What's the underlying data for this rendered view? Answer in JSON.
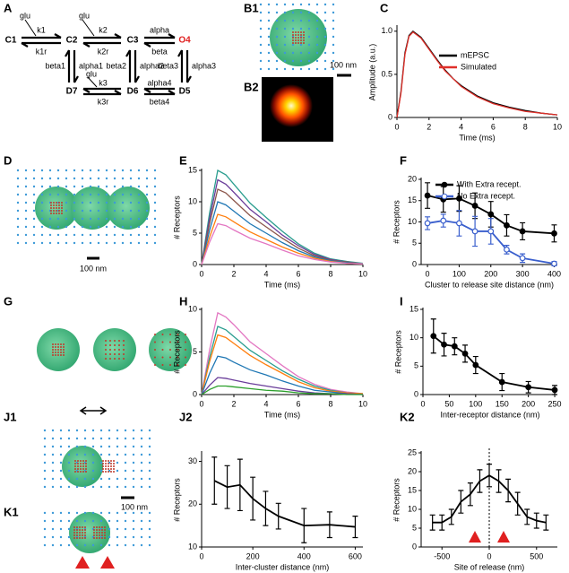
{
  "panel_labels": [
    "A",
    "B1",
    "B2",
    "C",
    "D",
    "E",
    "F",
    "G",
    "H",
    "I",
    "J1",
    "J2",
    "K1",
    "K2"
  ],
  "scheme": {
    "states": [
      "C1",
      "C2",
      "C3",
      "O4",
      "D7",
      "D6",
      "D5"
    ],
    "labels": [
      "glu",
      "k1",
      "k1r",
      "glu",
      "k2",
      "k2r",
      "alpha",
      "beta",
      "beta1",
      "alpha1",
      "beta2",
      "alpha2",
      "beta3",
      "alpha3",
      "glu",
      "k3",
      "k3r",
      "alpha4",
      "beta4"
    ]
  },
  "scale_bars": [
    "100 nm",
    "100 nm",
    "100 nm"
  ],
  "chart_data": [
    {
      "type": "line",
      "xlabel": "Time (ms)",
      "ylabel": "Amplitude (a.u.)",
      "legend": "upper right",
      "x": [
        0,
        0.25,
        0.5,
        0.75,
        1,
        1.5,
        2,
        2.5,
        3,
        3.5,
        4,
        5,
        6,
        7,
        8,
        9,
        10
      ],
      "series": [
        {
          "name": "mEPSC",
          "color": "#000000",
          "values": [
            0,
            0.3,
            0.75,
            0.95,
            1.0,
            0.93,
            0.8,
            0.67,
            0.55,
            0.45,
            0.37,
            0.25,
            0.17,
            0.12,
            0.08,
            0.05,
            0.03
          ]
        },
        {
          "name": "Simulated",
          "color": "#e0302a",
          "values": [
            0,
            0.28,
            0.73,
            0.94,
            0.99,
            0.92,
            0.79,
            0.66,
            0.54,
            0.45,
            0.36,
            0.24,
            0.16,
            0.11,
            0.07,
            0.05,
            0.03
          ]
        }
      ],
      "xlim": [
        0,
        10
      ],
      "xticks": [
        0,
        2,
        4,
        6,
        8,
        10
      ],
      "ylim": [
        0,
        1.05
      ],
      "yticks": [
        0,
        0.5,
        {
          "value": 1,
          "label": "1.0"
        }
      ]
    },
    {
      "type": "line",
      "xlabel": "Time (ms)",
      "ylabel": "# Receptors",
      "x": [
        0,
        0.5,
        1,
        1.5,
        2,
        3,
        4,
        5,
        6,
        7,
        8,
        9,
        10
      ],
      "series": [
        {
          "color": "#2a9d8f",
          "values": [
            0,
            8.3,
            15,
            14.3,
            12.8,
            9.8,
            7.5,
            5.3,
            3.3,
            1.8,
            0.9,
            0.5,
            0.2
          ]
        },
        {
          "color": "#6a3d9a",
          "values": [
            0,
            7.4,
            13.5,
            12.8,
            11.5,
            8.8,
            6.8,
            4.7,
            3,
            1.6,
            0.8,
            0.4,
            0.1
          ]
        },
        {
          "color": "#8c564b",
          "values": [
            0,
            6.6,
            12,
            11.4,
            10.2,
            7.8,
            6,
            4.2,
            2.6,
            1.4,
            0.7,
            0.4,
            0.1
          ]
        },
        {
          "color": "#1f77b4",
          "values": [
            0,
            5.5,
            10,
            9.5,
            8.5,
            6.5,
            5,
            3.5,
            2.2,
            1.2,
            0.6,
            0.3,
            0.1
          ]
        },
        {
          "color": "#ff7f0e",
          "values": [
            0,
            4.4,
            8,
            7.6,
            6.8,
            5.2,
            4,
            2.8,
            1.8,
            1,
            0.5,
            0.2,
            0.1
          ]
        },
        {
          "color": "#e377c2",
          "values": [
            0,
            3.6,
            6.5,
            6.2,
            5.5,
            4.2,
            3.3,
            2.3,
            1.4,
            0.8,
            0.4,
            0.2,
            0.1
          ]
        }
      ],
      "xlim": [
        0,
        10
      ],
      "xticks": [
        0,
        2,
        4,
        6,
        8,
        10
      ],
      "ylim": [
        0,
        15
      ],
      "yticks": [
        0,
        5,
        10,
        15
      ]
    },
    {
      "type": "line",
      "xlabel": "Cluster to release site distance (nm)",
      "ylabel": "# Receptors",
      "legend": "upper right",
      "x": [
        0,
        50,
        100,
        150,
        200,
        250,
        300,
        400
      ],
      "series": [
        {
          "name": "With Extra recept.",
          "color": "#000000",
          "marker_fill": "#000000",
          "values": [
            16.2,
            15.3,
            15.5,
            13.8,
            11.8,
            9.2,
            7.8,
            7.3
          ],
          "errors": [
            3,
            3,
            3,
            3,
            3,
            2.5,
            2,
            2
          ]
        },
        {
          "name": "No Extra recept.",
          "color": "#3a5fcd",
          "marker_fill": "#ffffff",
          "values": [
            9.7,
            10.3,
            9.7,
            7.8,
            7.8,
            3.5,
            1.5,
            0.2
          ],
          "errors": [
            1.5,
            1.5,
            3,
            3.5,
            3,
            1,
            1,
            0.5
          ]
        }
      ],
      "xlim": [
        -20,
        410
      ],
      "xticks": [
        0,
        100,
        200,
        300,
        400
      ],
      "ylim": [
        0,
        20
      ],
      "yticks": [
        0,
        5,
        10,
        15,
        20
      ]
    },
    {
      "type": "line",
      "xlabel": "Time (ms)",
      "ylabel": "# Receptors",
      "x": [
        0,
        0.5,
        1,
        1.5,
        2,
        3,
        4,
        5,
        6,
        7,
        8,
        9,
        10
      ],
      "series": [
        {
          "color": "#e377c2",
          "values": [
            0,
            5.3,
            9.6,
            9.1,
            8.2,
            6.2,
            4.8,
            3.4,
            2.1,
            1.2,
            0.6,
            0.3,
            0.1
          ]
        },
        {
          "color": "#2a9d8f",
          "values": [
            0,
            4.4,
            8,
            7.6,
            6.8,
            5.2,
            4,
            2.8,
            1.8,
            1,
            0.5,
            0.2,
            0.1
          ]
        },
        {
          "color": "#ff7f0e",
          "values": [
            0,
            3.9,
            7,
            6.7,
            6,
            4.6,
            3.5,
            2.5,
            1.5,
            0.8,
            0.4,
            0.2,
            0.1
          ]
        },
        {
          "color": "#1f77b4",
          "values": [
            0,
            2.5,
            4.5,
            4.3,
            3.8,
            2.9,
            2.3,
            1.6,
            1,
            0.5,
            0.3,
            0.1,
            0
          ]
        },
        {
          "color": "#6a3d9a",
          "values": [
            0,
            1.1,
            2,
            1.9,
            1.7,
            1.3,
            1,
            0.7,
            0.4,
            0.2,
            0.1,
            0.1,
            0
          ]
        },
        {
          "color": "#2ca02c",
          "values": [
            0,
            0.6,
            1,
            1,
            0.9,
            0.7,
            0.5,
            0.4,
            0.2,
            0.1,
            0.1,
            0,
            0
          ]
        }
      ],
      "xlim": [
        0,
        10
      ],
      "xticks": [
        0,
        2,
        4,
        6,
        8,
        10
      ],
      "ylim": [
        0,
        10
      ],
      "yticks": [
        0,
        5,
        10
      ]
    },
    {
      "type": "line",
      "xlabel": "Inter-receptor distance (nm)",
      "ylabel": "# Receptors",
      "x": [
        20,
        40,
        60,
        80,
        100,
        150,
        200,
        250
      ],
      "series": [
        {
          "color": "#000000",
          "marker_fill": "#000000",
          "values": [
            10.3,
            8.8,
            8.5,
            7.2,
            5.2,
            2.2,
            1.3,
            0.8
          ],
          "errors": [
            3,
            2,
            1.5,
            1.5,
            1.5,
            1.5,
            1,
            0.8
          ]
        }
      ],
      "xlim": [
        0,
        255
      ],
      "xticks": [
        0,
        50,
        100,
        150,
        200,
        250
      ],
      "ylim": [
        0,
        15
      ],
      "yticks": [
        0,
        5,
        10,
        15
      ]
    },
    {
      "type": "line",
      "xlabel": "Inter-cluster distance (nm)",
      "ylabel": "# Receptors",
      "x": [
        50,
        100,
        150,
        200,
        250,
        300,
        400,
        500,
        600
      ],
      "series": [
        {
          "color": "#000000",
          "values": [
            25.5,
            24,
            24.5,
            21.3,
            19,
            17.2,
            15,
            15.2,
            14.7
          ],
          "errors": [
            5.5,
            5,
            6,
            5,
            4,
            3,
            4,
            3,
            2.5
          ]
        }
      ],
      "xlim": [
        0,
        630
      ],
      "xticks": [
        0,
        200,
        400,
        600
      ],
      "ylim": [
        10,
        32
      ],
      "yticks": [
        10,
        20,
        30
      ]
    },
    {
      "type": "line",
      "xlabel": "Site of release (nm)",
      "ylabel": "# Receptors",
      "x": [
        -600,
        -500,
        -400,
        -300,
        -200,
        -100,
        0,
        100,
        200,
        300,
        400,
        500,
        600
      ],
      "series": [
        {
          "color": "#000000",
          "values": [
            6.5,
            6.5,
            8,
            12,
            14,
            17.5,
            19,
            17.5,
            15,
            11.5,
            8,
            7,
            6.5
          ],
          "errors": [
            2,
            2,
            2,
            3,
            3,
            3,
            3,
            3,
            3,
            3,
            2,
            2,
            2
          ]
        }
      ],
      "xlim": [
        -720,
        720
      ],
      "xticks": [
        -500,
        0,
        500
      ],
      "ylim": [
        0,
        25
      ],
      "yticks": [
        0,
        5,
        10,
        15,
        20,
        25
      ]
    }
  ]
}
